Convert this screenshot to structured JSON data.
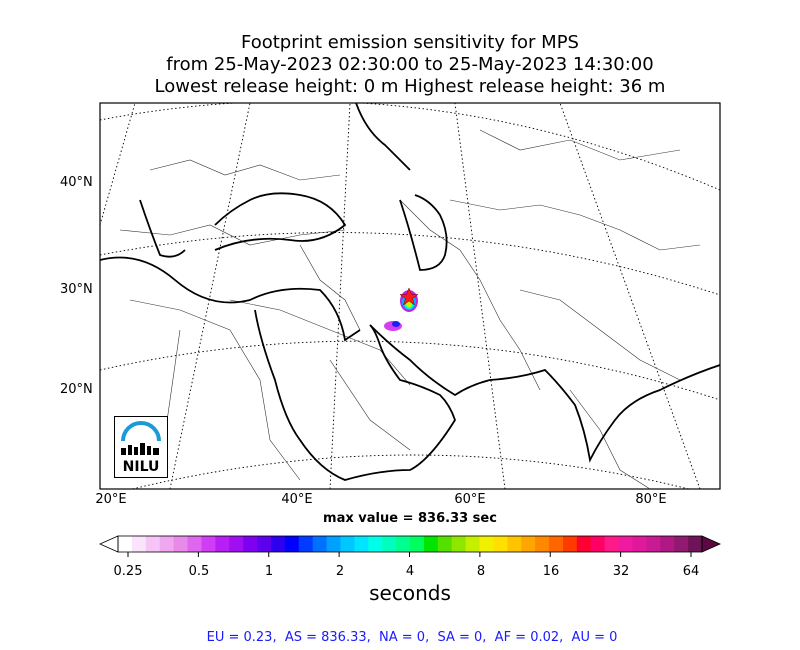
{
  "title": {
    "line1": "Footprint emission sensitivity for MPS",
    "line2": "from 25-May-2023 02:30:00 to 25-May-2023 14:30:00",
    "line3": "Lowest release height: 0 m      Highest release height: 36 m"
  },
  "map": {
    "lat_labels": [
      "40°N",
      "30°N",
      "20°N"
    ],
    "lon_labels": [
      "20°E",
      "40°E",
      "60°E",
      "80°E"
    ],
    "extent": {
      "lon_min": 20,
      "lon_max": 87,
      "lat_min": 11,
      "lat_max": 48
    },
    "release_site_icon": "star-icon",
    "max_value_text": "max value = 836.33 sec"
  },
  "logo": {
    "text": "NILU",
    "color": "#1a9ad6"
  },
  "colorbar": {
    "ticks": [
      "0.25",
      "0.5",
      "1",
      "2",
      "4",
      "8",
      "16",
      "32",
      "64"
    ],
    "unit": "seconds",
    "scale": "log2",
    "range": [
      0.25,
      64
    ],
    "colors": [
      "#ffffff",
      "#fbe3fb",
      "#f5c6f5",
      "#efa8ef",
      "#e88ae8",
      "#df66ef",
      "#cf3ef4",
      "#b81ff5",
      "#9f0ff2",
      "#7f00f0",
      "#5c00ee",
      "#2d00f0",
      "#0000ff",
      "#003cff",
      "#0070ff",
      "#00a0ff",
      "#00c8ff",
      "#00e4ff",
      "#00ffe8",
      "#00ffbe",
      "#00ff90",
      "#00ff5e",
      "#00e400",
      "#56e000",
      "#8fe600",
      "#c4f000",
      "#f0f000",
      "#ffe000",
      "#ffc400",
      "#ffa600",
      "#ff8800",
      "#ff6600",
      "#ff3a00",
      "#ff0033",
      "#ff0066",
      "#ff1a8a",
      "#f01aa0",
      "#e0189c",
      "#c81a92",
      "#b01884",
      "#901a70",
      "#6e1456"
    ]
  },
  "stats_line": "EU = 0.23,  AS = 836.33,  NA = 0,  SA = 0,  AF = 0.02,  AU = 0"
}
